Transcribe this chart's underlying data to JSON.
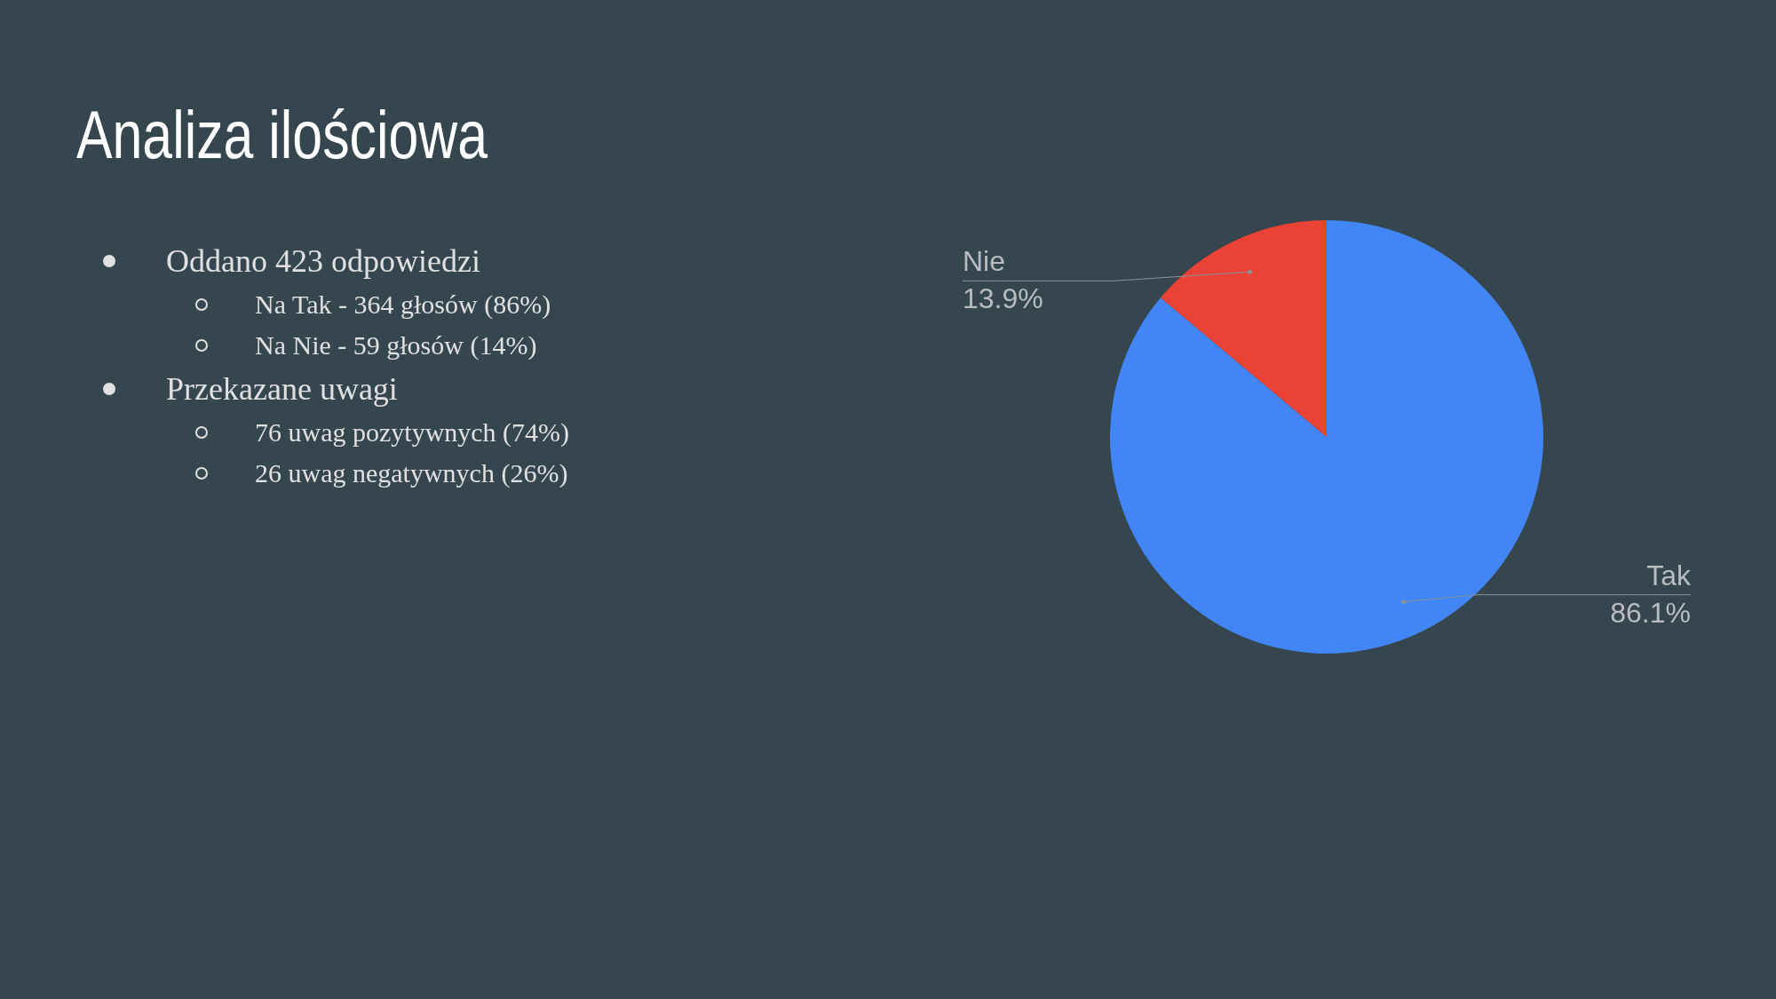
{
  "chart_data": {
    "type": "pie",
    "title": "Analiza ilościowa",
    "categories": [
      "Tak",
      "Nie"
    ],
    "values": [
      86.1,
      13.9
    ],
    "value_labels": [
      "86.1%",
      "13.9%"
    ],
    "colors": [
      "#4285f4",
      "#ea4335"
    ],
    "legend": false,
    "annotations": [
      "Oddano 423 odpowiedzi",
      "Na Tak - 364 głosów (86%)",
      "Na Nie - 59 głosów (14%)",
      "Przekazane uwagi",
      "76 uwag pozytywnych (74%)",
      "26 uwag negatywnych (26%)"
    ]
  }
}
